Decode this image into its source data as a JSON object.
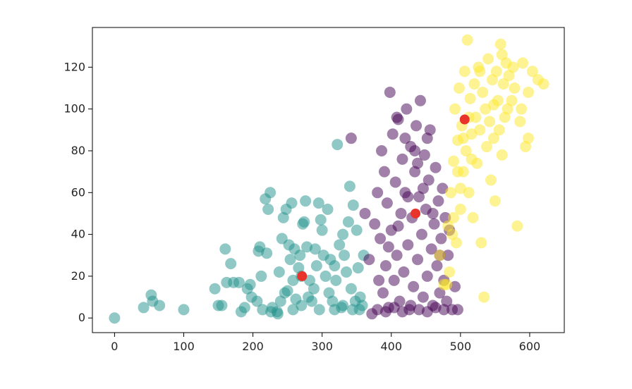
{
  "chart_data": {
    "type": "scatter",
    "title": "",
    "xlabel": "",
    "ylabel": "",
    "xlim": [
      -32,
      650
    ],
    "ylim": [
      -7,
      139
    ],
    "xticks": [
      "0",
      "100",
      "200",
      "300",
      "400",
      "500",
      "600"
    ],
    "yticks": [
      "0",
      "20",
      "40",
      "60",
      "80",
      "100",
      "120"
    ],
    "grid": false,
    "legend": "none",
    "colors": {
      "teal_cluster": "#21918c",
      "purple_cluster": "#440154",
      "yellow_cluster": "#fde725",
      "centroid": "#e8342a",
      "axis": "#000000"
    },
    "series": [
      {
        "color_key": "teal_cluster",
        "alpha": 0.5,
        "points": [
          [
            0,
            0
          ],
          [
            42,
            5
          ],
          [
            53,
            11
          ],
          [
            55,
            8
          ],
          [
            65,
            6
          ],
          [
            100,
            4
          ],
          [
            145,
            14
          ],
          [
            150,
            6
          ],
          [
            155,
            6
          ],
          [
            160,
            33
          ],
          [
            162,
            17
          ],
          [
            168,
            26
          ],
          [
            172,
            17
          ],
          [
            180,
            17
          ],
          [
            183,
            3
          ],
          [
            188,
            5
          ],
          [
            192,
            14
          ],
          [
            196,
            16
          ],
          [
            198,
            10
          ],
          [
            208,
            32
          ],
          [
            210,
            34
          ],
          [
            212,
            20
          ],
          [
            218,
            57
          ],
          [
            220,
            31
          ],
          [
            222,
            52
          ],
          [
            225,
            60
          ],
          [
            228,
            5
          ],
          [
            235,
            3
          ],
          [
            238,
            22
          ],
          [
            240,
            8
          ],
          [
            242,
            38
          ],
          [
            244,
            48
          ],
          [
            248,
            52
          ],
          [
            250,
            13
          ],
          [
            252,
            35
          ],
          [
            254,
            28
          ],
          [
            256,
            55
          ],
          [
            258,
            18
          ],
          [
            260,
            33
          ],
          [
            262,
            9
          ],
          [
            266,
            24
          ],
          [
            268,
            30
          ],
          [
            270,
            20
          ],
          [
            272,
            45
          ],
          [
            274,
            46
          ],
          [
            276,
            56
          ],
          [
            278,
            34
          ],
          [
            280,
            10
          ],
          [
            282,
            18
          ],
          [
            285,
            8
          ],
          [
            288,
            14
          ],
          [
            290,
            33
          ],
          [
            292,
            25
          ],
          [
            295,
            55
          ],
          [
            298,
            47
          ],
          [
            300,
            42
          ],
          [
            302,
            30
          ],
          [
            305,
            20
          ],
          [
            308,
            52
          ],
          [
            310,
            12
          ],
          [
            312,
            28
          ],
          [
            315,
            8
          ],
          [
            318,
            25
          ],
          [
            320,
            18
          ],
          [
            322,
            83
          ],
          [
            325,
            35
          ],
          [
            328,
            5
          ],
          [
            330,
            40
          ],
          [
            332,
            30
          ],
          [
            335,
            22
          ],
          [
            338,
            46
          ],
          [
            340,
            63
          ],
          [
            342,
            14
          ],
          [
            345,
            54
          ],
          [
            348,
            8
          ],
          [
            350,
            42
          ],
          [
            352,
            24
          ],
          [
            355,
            10
          ],
          [
            358,
            6
          ],
          [
            360,
            30
          ],
          [
            246,
            12
          ],
          [
            258,
            4
          ],
          [
            270,
            6
          ],
          [
            296,
            4
          ],
          [
            318,
            4
          ],
          [
            330,
            6
          ],
          [
            344,
            4
          ],
          [
            354,
            4
          ],
          [
            236,
            2
          ],
          [
            226,
            3
          ],
          [
            214,
            4
          ],
          [
            206,
            8
          ]
        ]
      },
      {
        "color_key": "purple_cluster",
        "alpha": 0.5,
        "points": [
          [
            342,
            86
          ],
          [
            362,
            50
          ],
          [
            368,
            28
          ],
          [
            372,
            2
          ],
          [
            376,
            45
          ],
          [
            380,
            60
          ],
          [
            384,
            38
          ],
          [
            386,
            80
          ],
          [
            388,
            12
          ],
          [
            390,
            70
          ],
          [
            392,
            25
          ],
          [
            394,
            55
          ],
          [
            396,
            5
          ],
          [
            398,
            108
          ],
          [
            400,
            42
          ],
          [
            402,
            88
          ],
          [
            404,
            18
          ],
          [
            406,
            65
          ],
          [
            408,
            30
          ],
          [
            410,
            95
          ],
          [
            412,
            8
          ],
          [
            414,
            50
          ],
          [
            416,
            76
          ],
          [
            418,
            22
          ],
          [
            420,
            60
          ],
          [
            422,
            100
          ],
          [
            424,
            35
          ],
          [
            426,
            4
          ],
          [
            428,
            82
          ],
          [
            430,
            48
          ],
          [
            432,
            15
          ],
          [
            434,
            70
          ],
          [
            436,
            92
          ],
          [
            438,
            28
          ],
          [
            440,
            58
          ],
          [
            442,
            104
          ],
          [
            444,
            40
          ],
          [
            446,
            10
          ],
          [
            448,
            78
          ],
          [
            450,
            52
          ],
          [
            452,
            20
          ],
          [
            454,
            66
          ],
          [
            456,
            90
          ],
          [
            458,
            33
          ],
          [
            460,
            6
          ],
          [
            462,
            45
          ],
          [
            464,
            72
          ],
          [
            466,
            25
          ],
          [
            468,
            56
          ],
          [
            470,
            12
          ],
          [
            472,
            38
          ],
          [
            474,
            62
          ],
          [
            476,
            18
          ],
          [
            478,
            48
          ],
          [
            480,
            8
          ],
          [
            482,
            30
          ],
          [
            484,
            42
          ],
          [
            488,
            4
          ],
          [
            492,
            15
          ],
          [
            496,
            4
          ],
          [
            380,
            4
          ],
          [
            392,
            3
          ],
          [
            404,
            5
          ],
          [
            416,
            3
          ],
          [
            428,
            6
          ],
          [
            440,
            4
          ],
          [
            452,
            3
          ],
          [
            464,
            5
          ],
          [
            476,
            4
          ],
          [
            382,
            18
          ],
          [
            396,
            34
          ],
          [
            410,
            44
          ],
          [
            424,
            58
          ],
          [
            438,
            74
          ],
          [
            452,
            86
          ],
          [
            408,
            96
          ],
          [
            420,
            86
          ],
          [
            434,
            80
          ],
          [
            446,
            62
          ],
          [
            460,
            50
          ],
          [
            470,
            30
          ]
        ]
      },
      {
        "color_key": "yellow_cluster",
        "alpha": 0.5,
        "points": [
          [
            470,
            30
          ],
          [
            476,
            16
          ],
          [
            482,
            44
          ],
          [
            486,
            60
          ],
          [
            490,
            75
          ],
          [
            492,
            100
          ],
          [
            494,
            36
          ],
          [
            496,
            85
          ],
          [
            498,
            110
          ],
          [
            500,
            52
          ],
          [
            502,
            92
          ],
          [
            504,
            70
          ],
          [
            506,
            118
          ],
          [
            508,
            80
          ],
          [
            510,
            133
          ],
          [
            512,
            60
          ],
          [
            514,
            105
          ],
          [
            516,
            88
          ],
          [
            518,
            48
          ],
          [
            520,
            112
          ],
          [
            522,
            96
          ],
          [
            524,
            74
          ],
          [
            526,
            120
          ],
          [
            528,
            90
          ],
          [
            530,
            36
          ],
          [
            532,
            108
          ],
          [
            534,
            10
          ],
          [
            536,
            100
          ],
          [
            538,
            82
          ],
          [
            540,
            124
          ],
          [
            542,
            94
          ],
          [
            544,
            66
          ],
          [
            546,
            114
          ],
          [
            548,
            86
          ],
          [
            550,
            56
          ],
          [
            552,
            118
          ],
          [
            554,
            104
          ],
          [
            556,
            90
          ],
          [
            558,
            131
          ],
          [
            560,
            78
          ],
          [
            562,
            112
          ],
          [
            564,
            96
          ],
          [
            566,
            122
          ],
          [
            568,
            100
          ],
          [
            570,
            116
          ],
          [
            574,
            104
          ],
          [
            578,
            110
          ],
          [
            582,
            44
          ],
          [
            586,
            94
          ],
          [
            590,
            122
          ],
          [
            594,
            82
          ],
          [
            598,
            86
          ],
          [
            604,
            118
          ],
          [
            612,
            114
          ],
          [
            620,
            112
          ],
          [
            598,
            108
          ],
          [
            588,
            100
          ],
          [
            576,
            120
          ],
          [
            560,
            126
          ],
          [
            548,
            102
          ],
          [
            528,
            118
          ],
          [
            512,
            96
          ],
          [
            500,
            62
          ],
          [
            488,
            40
          ],
          [
            480,
            16
          ],
          [
            484,
            22
          ],
          [
            490,
            48
          ],
          [
            496,
            70
          ],
          [
            504,
            86
          ],
          [
            516,
            76
          ]
        ]
      }
    ],
    "centroids": [
      {
        "x": 271,
        "y": 20
      },
      {
        "x": 435,
        "y": 50
      },
      {
        "x": 506,
        "y": 95
      }
    ]
  }
}
